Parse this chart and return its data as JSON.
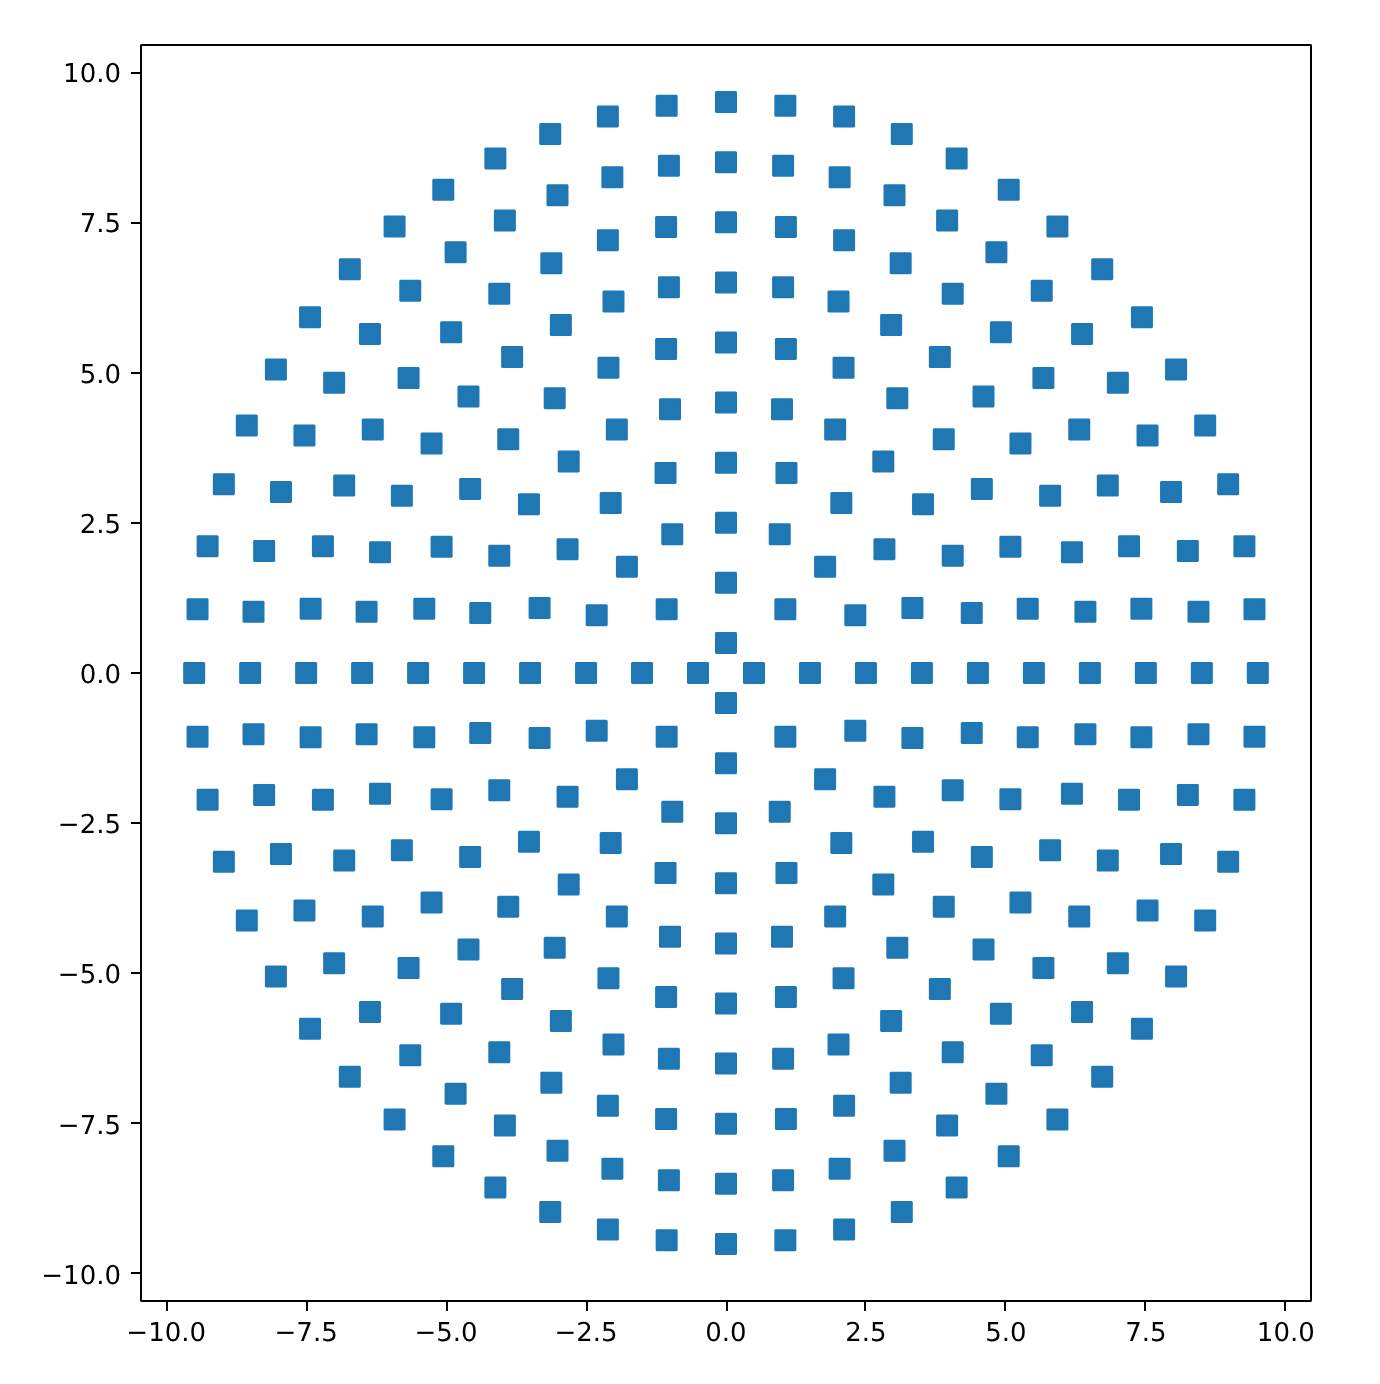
{
  "chart_data": {
    "type": "scatter",
    "marker": "square",
    "grid": false,
    "xlim": [
      -10.45,
      10.45
    ],
    "ylim": [
      -10.45,
      10.45
    ],
    "xticks": [
      {
        "value": -10,
        "label": "−10.0"
      },
      {
        "value": -7.5,
        "label": "−7.5"
      },
      {
        "value": -5,
        "label": "−5.0"
      },
      {
        "value": -2.5,
        "label": "−2.5"
      },
      {
        "value": 0,
        "label": "0.0"
      },
      {
        "value": 2.5,
        "label": "2.5"
      },
      {
        "value": 5,
        "label": "5.0"
      },
      {
        "value": 7.5,
        "label": "7.5"
      },
      {
        "value": 10,
        "label": "10.0"
      }
    ],
    "yticks": [
      {
        "value": -10,
        "label": "−10.0"
      },
      {
        "value": -7.5,
        "label": "−7.5"
      },
      {
        "value": -5,
        "label": "−5.0"
      },
      {
        "value": -2.5,
        "label": "−2.5"
      },
      {
        "value": 0,
        "label": "0.0"
      },
      {
        "value": 2.5,
        "label": "2.5"
      },
      {
        "value": 5,
        "label": "5.0"
      },
      {
        "value": 7.5,
        "label": "7.5"
      },
      {
        "value": 10,
        "label": "10.0"
      }
    ],
    "series": [
      {
        "color": "#1f77b4",
        "x": [
          0.5,
          1.5,
          1.06,
          2.5,
          2.31,
          1.77,
          0.96,
          3.5,
          3.33,
          2.83,
          2.06,
          1.08,
          4.5,
          4.39,
          4.05,
          3.52,
          2.81,
          1.95,
          1.0,
          5.5,
          5.39,
          5.08,
          4.57,
          3.89,
          3.06,
          2.1,
          1.07,
          6.5,
          6.42,
          6.18,
          5.79,
          5.26,
          4.6,
          3.82,
          2.95,
          2.01,
          1.02,
          7.5,
          7.42,
          7.2,
          6.82,
          6.31,
          5.67,
          4.91,
          4.05,
          3.12,
          2.11,
          1.07,
          8.5,
          8.44,
          8.25,
          7.95,
          7.53,
          7.0,
          6.36,
          5.64,
          4.83,
          3.95,
          3.01,
          2.03,
          1.02,
          9.5,
          9.44,
          9.26,
          8.97,
          8.56,
          8.04,
          7.43,
          6.72,
          5.92,
          5.05,
          4.12,
          3.14,
          2.11,
          1.06,
          0,
          0,
          -1.06,
          0,
          -0.96,
          -1.77,
          -2.31,
          0,
          -1.08,
          -2.06,
          -2.83,
          -3.33,
          0,
          -1.0,
          -1.95,
          -2.81,
          -3.52,
          -4.05,
          -4.39,
          0,
          -1.07,
          -2.1,
          -3.06,
          -3.89,
          -4.57,
          -5.08,
          -5.39,
          0,
          -1.02,
          -2.01,
          -2.95,
          -3.82,
          -4.6,
          -5.26,
          -5.79,
          -6.18,
          -6.42,
          0,
          -1.07,
          -2.11,
          -3.12,
          -4.05,
          -4.91,
          -5.67,
          -6.31,
          -6.82,
          -7.2,
          -7.42,
          0,
          -1.02,
          -2.03,
          -3.01,
          -3.95,
          -4.83,
          -5.64,
          -6.36,
          -7.0,
          -7.53,
          -7.95,
          -8.25,
          -8.44,
          0,
          -1.06,
          -2.11,
          -3.14,
          -4.12,
          -5.05,
          -5.92,
          -6.72,
          -7.43,
          -8.04,
          -8.56,
          -8.97,
          -9.26,
          -9.44,
          -0.5,
          -1.5,
          -1.06,
          -2.5,
          -2.31,
          -1.77,
          -0.96,
          -3.5,
          -3.33,
          -2.83,
          -2.06,
          -1.08,
          -4.5,
          -4.39,
          -4.05,
          -3.52,
          -2.81,
          -1.95,
          -1.0,
          -5.5,
          -5.39,
          -5.08,
          -4.57,
          -3.89,
          -3.06,
          -2.1,
          -1.07,
          -6.5,
          -6.42,
          -6.18,
          -5.79,
          -5.26,
          -4.6,
          -3.82,
          -2.95,
          -2.01,
          -1.02,
          -7.5,
          -7.42,
          -7.2,
          -6.82,
          -6.31,
          -5.67,
          -4.91,
          -4.05,
          -3.12,
          -2.11,
          -1.07,
          -8.5,
          -8.44,
          -8.25,
          -7.95,
          -7.53,
          -7.0,
          -6.36,
          -5.64,
          -4.83,
          -3.95,
          -3.01,
          -2.03,
          -1.02,
          -9.5,
          -9.44,
          -9.26,
          -8.97,
          -8.56,
          -8.04,
          -7.43,
          -6.72,
          -5.92,
          -5.05,
          -4.12,
          -3.14,
          -2.11,
          -1.06,
          0,
          0,
          1.06,
          0,
          0.96,
          1.77,
          2.31,
          0,
          1.08,
          2.06,
          2.83,
          3.33,
          0,
          1.0,
          1.95,
          2.81,
          3.52,
          4.05,
          4.39,
          0,
          1.07,
          2.1,
          3.06,
          3.89,
          4.57,
          5.08,
          5.39,
          0,
          1.02,
          2.01,
          2.95,
          3.82,
          4.6,
          5.26,
          5.79,
          6.18,
          6.42,
          0,
          1.07,
          2.11,
          3.12,
          4.05,
          4.91,
          5.67,
          6.31,
          6.82,
          7.2,
          7.42,
          0,
          1.02,
          2.03,
          3.01,
          3.95,
          4.83,
          5.64,
          6.36,
          7.0,
          7.53,
          7.95,
          8.25,
          8.44,
          0,
          1.06,
          2.11,
          3.14,
          4.12,
          5.05,
          5.92,
          6.72,
          7.43,
          8.04,
          8.56,
          8.97,
          9.26,
          9.44
        ],
        "values": [
          0,
          0,
          1.06,
          0,
          0.96,
          1.77,
          2.31,
          0,
          1.08,
          2.06,
          2.83,
          3.33,
          0,
          1.0,
          1.95,
          2.81,
          3.52,
          4.05,
          4.39,
          0,
          1.07,
          2.1,
          3.06,
          3.89,
          4.57,
          5.08,
          5.39,
          0,
          1.02,
          2.01,
          2.95,
          3.82,
          4.6,
          5.26,
          5.79,
          6.18,
          6.42,
          0,
          1.07,
          2.11,
          3.12,
          4.05,
          4.91,
          5.67,
          6.31,
          6.82,
          7.2,
          7.42,
          0,
          1.02,
          2.03,
          3.01,
          3.95,
          4.83,
          5.64,
          6.36,
          7.0,
          7.53,
          7.95,
          8.25,
          8.44,
          0,
          1.06,
          2.11,
          3.14,
          4.12,
          5.05,
          5.92,
          6.72,
          7.43,
          8.04,
          8.56,
          8.97,
          9.26,
          9.44,
          0.5,
          1.5,
          1.06,
          2.5,
          2.31,
          1.77,
          0.96,
          3.5,
          3.33,
          2.83,
          2.06,
          1.08,
          4.5,
          4.39,
          4.05,
          3.52,
          2.81,
          1.95,
          1.0,
          5.5,
          5.39,
          5.08,
          4.57,
          3.89,
          3.06,
          2.1,
          1.07,
          6.5,
          6.42,
          6.18,
          5.79,
          5.26,
          4.6,
          3.82,
          2.95,
          2.01,
          1.02,
          7.5,
          7.42,
          7.2,
          6.82,
          6.31,
          5.67,
          4.91,
          4.05,
          3.12,
          2.11,
          1.07,
          8.5,
          8.44,
          8.25,
          7.95,
          7.53,
          7.0,
          6.36,
          5.64,
          4.83,
          3.95,
          3.01,
          2.03,
          1.02,
          9.5,
          9.44,
          9.26,
          8.97,
          8.56,
          8.04,
          7.43,
          6.72,
          5.92,
          5.05,
          4.12,
          3.14,
          2.11,
          1.06,
          0,
          0,
          -1.06,
          0,
          -0.96,
          -1.77,
          -2.31,
          0,
          -1.08,
          -2.06,
          -2.83,
          -3.33,
          0,
          -1.0,
          -1.95,
          -2.81,
          -3.52,
          -4.05,
          -4.39,
          0,
          -1.07,
          -2.1,
          -3.06,
          -3.89,
          -4.57,
          -5.08,
          -5.39,
          0,
          -1.02,
          -2.01,
          -2.95,
          -3.82,
          -4.6,
          -5.26,
          -5.79,
          -6.18,
          -6.42,
          0,
          -1.07,
          -2.11,
          -3.12,
          -4.05,
          -4.91,
          -5.67,
          -6.31,
          -6.82,
          -7.2,
          -7.42,
          0,
          -1.02,
          -2.03,
          -3.01,
          -3.95,
          -4.83,
          -5.64,
          -6.36,
          -7.0,
          -7.53,
          -7.95,
          -8.25,
          -8.44,
          0,
          -1.06,
          -2.11,
          -3.14,
          -4.12,
          -5.05,
          -5.92,
          -6.72,
          -7.43,
          -8.04,
          -8.56,
          -8.97,
          -9.26,
          -9.44,
          -0.5,
          -1.5,
          -1.06,
          -2.5,
          -2.31,
          -1.77,
          -0.96,
          -3.5,
          -3.33,
          -2.83,
          -2.06,
          -1.08,
          -4.5,
          -4.39,
          -4.05,
          -3.52,
          -2.81,
          -1.95,
          -1.0,
          -5.5,
          -5.39,
          -5.08,
          -4.57,
          -3.89,
          -3.06,
          -2.1,
          -1.07,
          -6.5,
          -6.42,
          -6.18,
          -5.79,
          -5.26,
          -4.6,
          -3.82,
          -2.95,
          -2.01,
          -1.02,
          -7.5,
          -7.42,
          -7.2,
          -6.82,
          -6.31,
          -5.67,
          -4.91,
          -4.05,
          -3.12,
          -2.11,
          -1.07,
          -8.5,
          -8.44,
          -8.25,
          -7.95,
          -7.53,
          -7.0,
          -6.36,
          -5.64,
          -4.83,
          -3.95,
          -3.01,
          -2.03,
          -1.02,
          -9.5,
          -9.44,
          -9.26,
          -8.97,
          -8.56,
          -8.04,
          -7.43,
          -6.72,
          -5.92,
          -5.05,
          -4.12,
          -3.14,
          -2.11,
          -1.06
        ]
      }
    ]
  }
}
